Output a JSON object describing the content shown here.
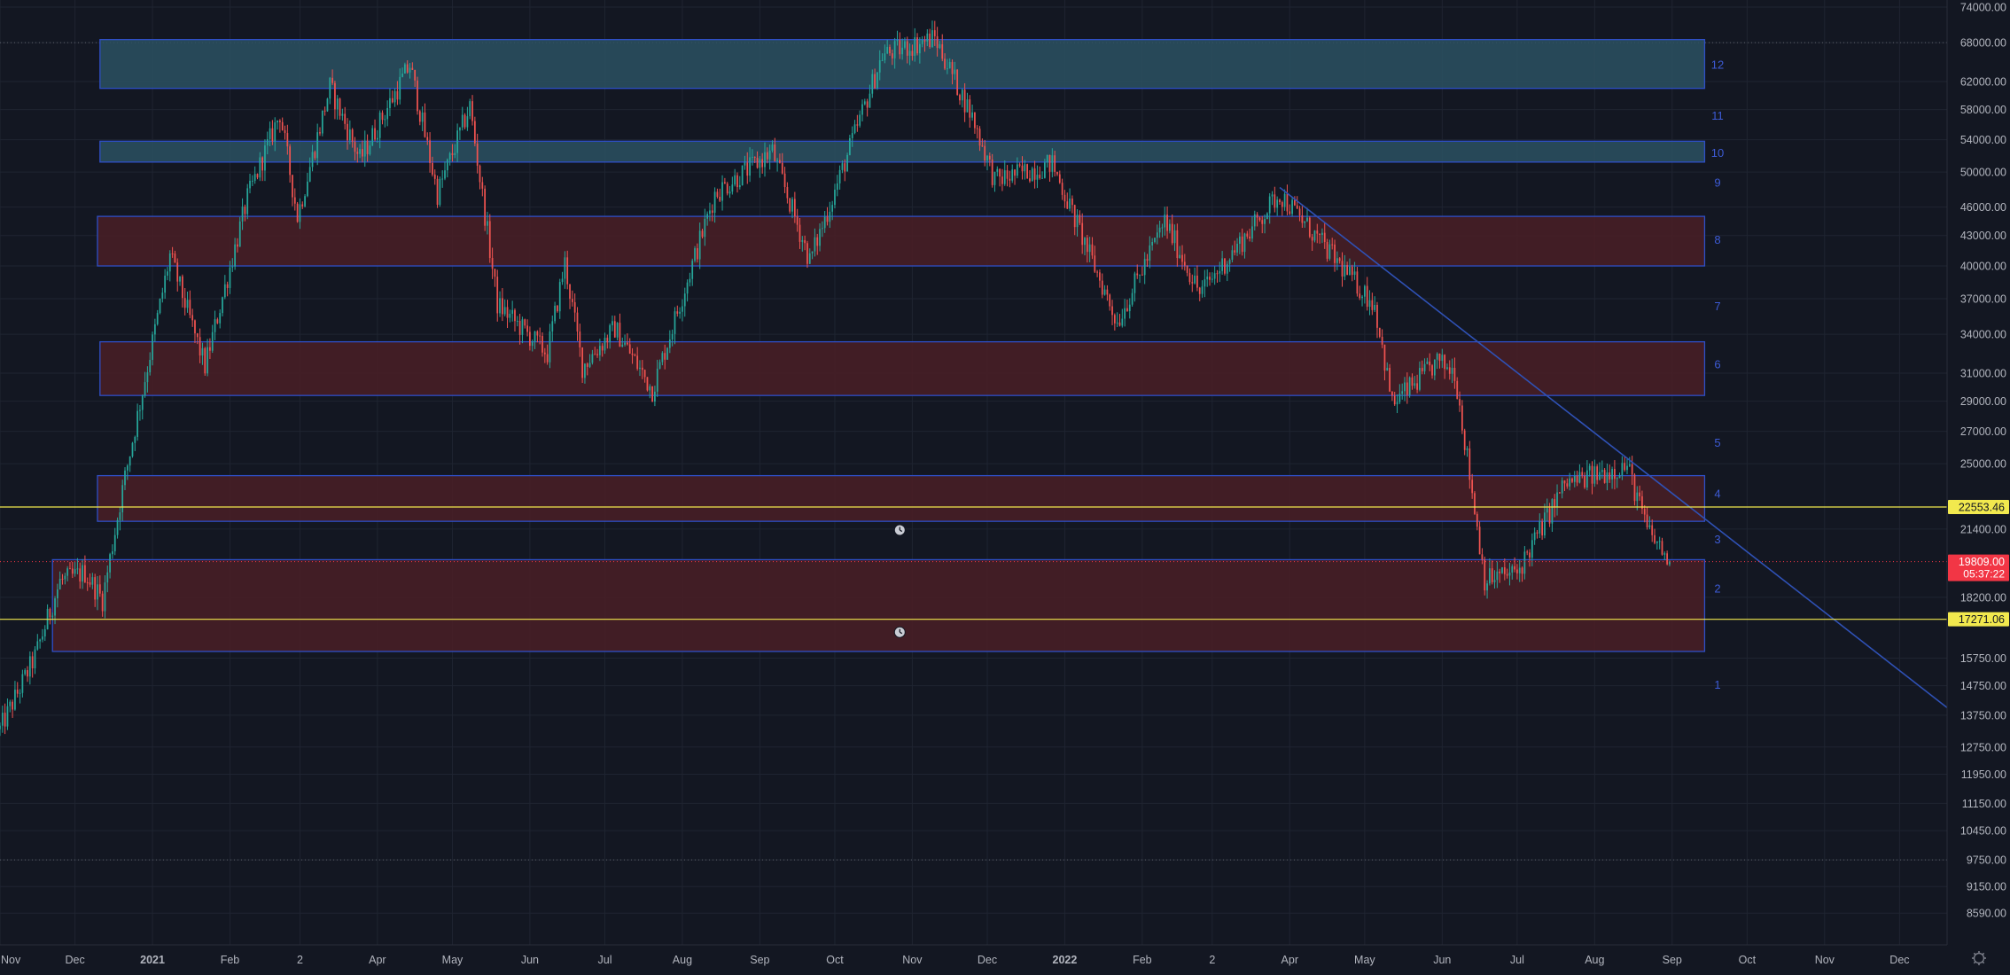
{
  "chart_data": {
    "type": "candlestick",
    "y_scale": "log",
    "ylim": [
      8000,
      74000
    ],
    "x_start": "2020-11-01",
    "x_end": "2022-12-20",
    "x_tick_labels": [
      {
        "label": "Nov",
        "date": "2020-11-01"
      },
      {
        "label": "Dec",
        "date": "2020-12-01"
      },
      {
        "label": "2021",
        "date": "2021-01-01"
      },
      {
        "label": "Feb",
        "date": "2021-02-01"
      },
      {
        "label": "2",
        "date": "2021-03-01"
      },
      {
        "label": "Apr",
        "date": "2021-04-01"
      },
      {
        "label": "May",
        "date": "2021-05-01"
      },
      {
        "label": "Jun",
        "date": "2021-06-01"
      },
      {
        "label": "Jul",
        "date": "2021-07-01"
      },
      {
        "label": "Aug",
        "date": "2021-08-01"
      },
      {
        "label": "Sep",
        "date": "2021-09-01"
      },
      {
        "label": "Oct",
        "date": "2021-10-01"
      },
      {
        "label": "Nov",
        "date": "2021-11-01"
      },
      {
        "label": "Dec",
        "date": "2021-12-01"
      },
      {
        "label": "2022",
        "date": "2022-01-01"
      },
      {
        "label": "Feb",
        "date": "2022-02-01"
      },
      {
        "label": "2",
        "date": "2022-03-01"
      },
      {
        "label": "Apr",
        "date": "2022-04-01"
      },
      {
        "label": "May",
        "date": "2022-05-01"
      },
      {
        "label": "Jun",
        "date": "2022-06-01"
      },
      {
        "label": "Jul",
        "date": "2022-07-01"
      },
      {
        "label": "Aug",
        "date": "2022-08-01"
      },
      {
        "label": "Sep",
        "date": "2022-09-01"
      },
      {
        "label": "Oct",
        "date": "2022-10-01"
      },
      {
        "label": "Nov",
        "date": "2022-11-01"
      },
      {
        "label": "Dec",
        "date": "2022-12-01"
      }
    ],
    "y_tick_labels": [
      "74000.00",
      "68000.00",
      "62000.00",
      "58000.00",
      "54000.00",
      "50000.00",
      "46000.00",
      "43000.00",
      "40000.00",
      "37000.00",
      "34000.00",
      "31000.00",
      "29000.00",
      "27000.00",
      "25000.00",
      "21400.00",
      "18200.00",
      "15750.00",
      "14750.00",
      "13750.00",
      "12750.00",
      "11950.00",
      "11150.00",
      "10450.00",
      "9750.00",
      "9150.00",
      "8590.00"
    ],
    "dotted_levels": [
      68000,
      9750
    ],
    "price_path": [
      [
        "2020-11-01",
        13300
      ],
      [
        "2020-11-15",
        15800
      ],
      [
        "2020-11-25",
        18900
      ],
      [
        "2020-12-05",
        19300
      ],
      [
        "2020-12-12",
        18100
      ],
      [
        "2020-12-20",
        23500
      ],
      [
        "2021-01-08",
        41000
      ],
      [
        "2021-01-22",
        31500
      ],
      [
        "2021-02-08",
        47000
      ],
      [
        "2021-02-21",
        57500
      ],
      [
        "2021-02-28",
        45000
      ],
      [
        "2021-03-13",
        61200
      ],
      [
        "2021-03-25",
        51500
      ],
      [
        "2021-04-14",
        64500
      ],
      [
        "2021-04-25",
        47500
      ],
      [
        "2021-05-08",
        58500
      ],
      [
        "2021-05-19",
        36500
      ],
      [
        "2021-06-08",
        32500
      ],
      [
        "2021-06-15",
        40300
      ],
      [
        "2021-06-22",
        31500
      ],
      [
        "2021-07-05",
        34500
      ],
      [
        "2021-07-20",
        29800
      ],
      [
        "2021-08-14",
        47500
      ],
      [
        "2021-09-06",
        52500
      ],
      [
        "2021-09-21",
        40500
      ],
      [
        "2021-10-01",
        47800
      ],
      [
        "2021-10-20",
        66000
      ],
      [
        "2021-11-10",
        68800
      ],
      [
        "2021-11-25",
        57000
      ],
      [
        "2021-12-04",
        49000
      ],
      [
        "2021-12-27",
        51000
      ],
      [
        "2022-01-22",
        35000
      ],
      [
        "2022-02-10",
        44500
      ],
      [
        "2022-02-24",
        37500
      ],
      [
        "2022-03-28",
        47500
      ],
      [
        "2022-04-25",
        39000
      ],
      [
        "2022-05-05",
        36500
      ],
      [
        "2022-05-12",
        28800
      ],
      [
        "2022-05-30",
        31800
      ],
      [
        "2022-06-06",
        31200
      ],
      [
        "2022-06-18",
        19000
      ],
      [
        "2022-07-01",
        19300
      ],
      [
        "2022-07-20",
        23800
      ],
      [
        "2022-08-14",
        24900
      ],
      [
        "2022-08-22",
        21400
      ],
      [
        "2022-08-31",
        19809
      ]
    ],
    "zones": [
      {
        "label": "12",
        "low": 61000,
        "high": 68500,
        "color": "#2b5161",
        "start": "2020-12-11",
        "end": "2022-09-14"
      },
      {
        "label": "10",
        "low": 51200,
        "high": 53800,
        "color": "#2b5161",
        "start": "2020-12-11",
        "end": "2022-09-14"
      },
      {
        "label": "8",
        "low": 40000,
        "high": 45000,
        "color": "#4a1f26",
        "start": "2020-12-10",
        "end": "2022-09-14"
      },
      {
        "label": "6",
        "low": 29400,
        "high": 33400,
        "color": "#4a1f26",
        "start": "2020-12-11",
        "end": "2022-09-14"
      },
      {
        "label": "4",
        "low": 21800,
        "high": 24300,
        "color": "#4a1f26",
        "start": "2020-12-10",
        "end": "2022-09-14"
      },
      {
        "label": "2",
        "low": 16000,
        "high": 19900,
        "color": "#4a1f26",
        "start": "2020-11-22",
        "end": "2022-09-14"
      }
    ],
    "zone_numbers": [
      {
        "label": "12",
        "price": 64600
      },
      {
        "label": "11",
        "price": 57200
      },
      {
        "label": "10",
        "price": 52400
      },
      {
        "label": "9",
        "price": 48800
      },
      {
        "label": "8",
        "price": 42600
      },
      {
        "label": "7",
        "price": 36400
      },
      {
        "label": "6",
        "price": 31700
      },
      {
        "label": "5",
        "price": 26300
      },
      {
        "label": "4",
        "price": 23300
      },
      {
        "label": "3",
        "price": 20900
      },
      {
        "label": "2",
        "price": 18600
      },
      {
        "label": "1",
        "price": 14800
      }
    ],
    "horizontal_lines": [
      {
        "price": 22553.46,
        "label": "22553.46",
        "color": "#f2e94e"
      },
      {
        "price": 17271.06,
        "label": "17271.06",
        "color": "#f2e94e"
      }
    ],
    "trendline": {
      "start_date": "2022-03-28",
      "start_price": 48200,
      "end_date": "2022-12-20",
      "end_price": 14000,
      "color": "#2f51b5"
    },
    "current_price": {
      "label": "19809.00",
      "countdown": "05:37:22",
      "price": 19809,
      "color": "#f23645"
    },
    "alert_markers": [
      {
        "date": "2021-10-27",
        "price": 21350
      },
      {
        "date": "2021-10-27",
        "price": 16750
      }
    ],
    "candle_colors": {
      "up": "#26a69a",
      "down": "#ef5350"
    }
  }
}
